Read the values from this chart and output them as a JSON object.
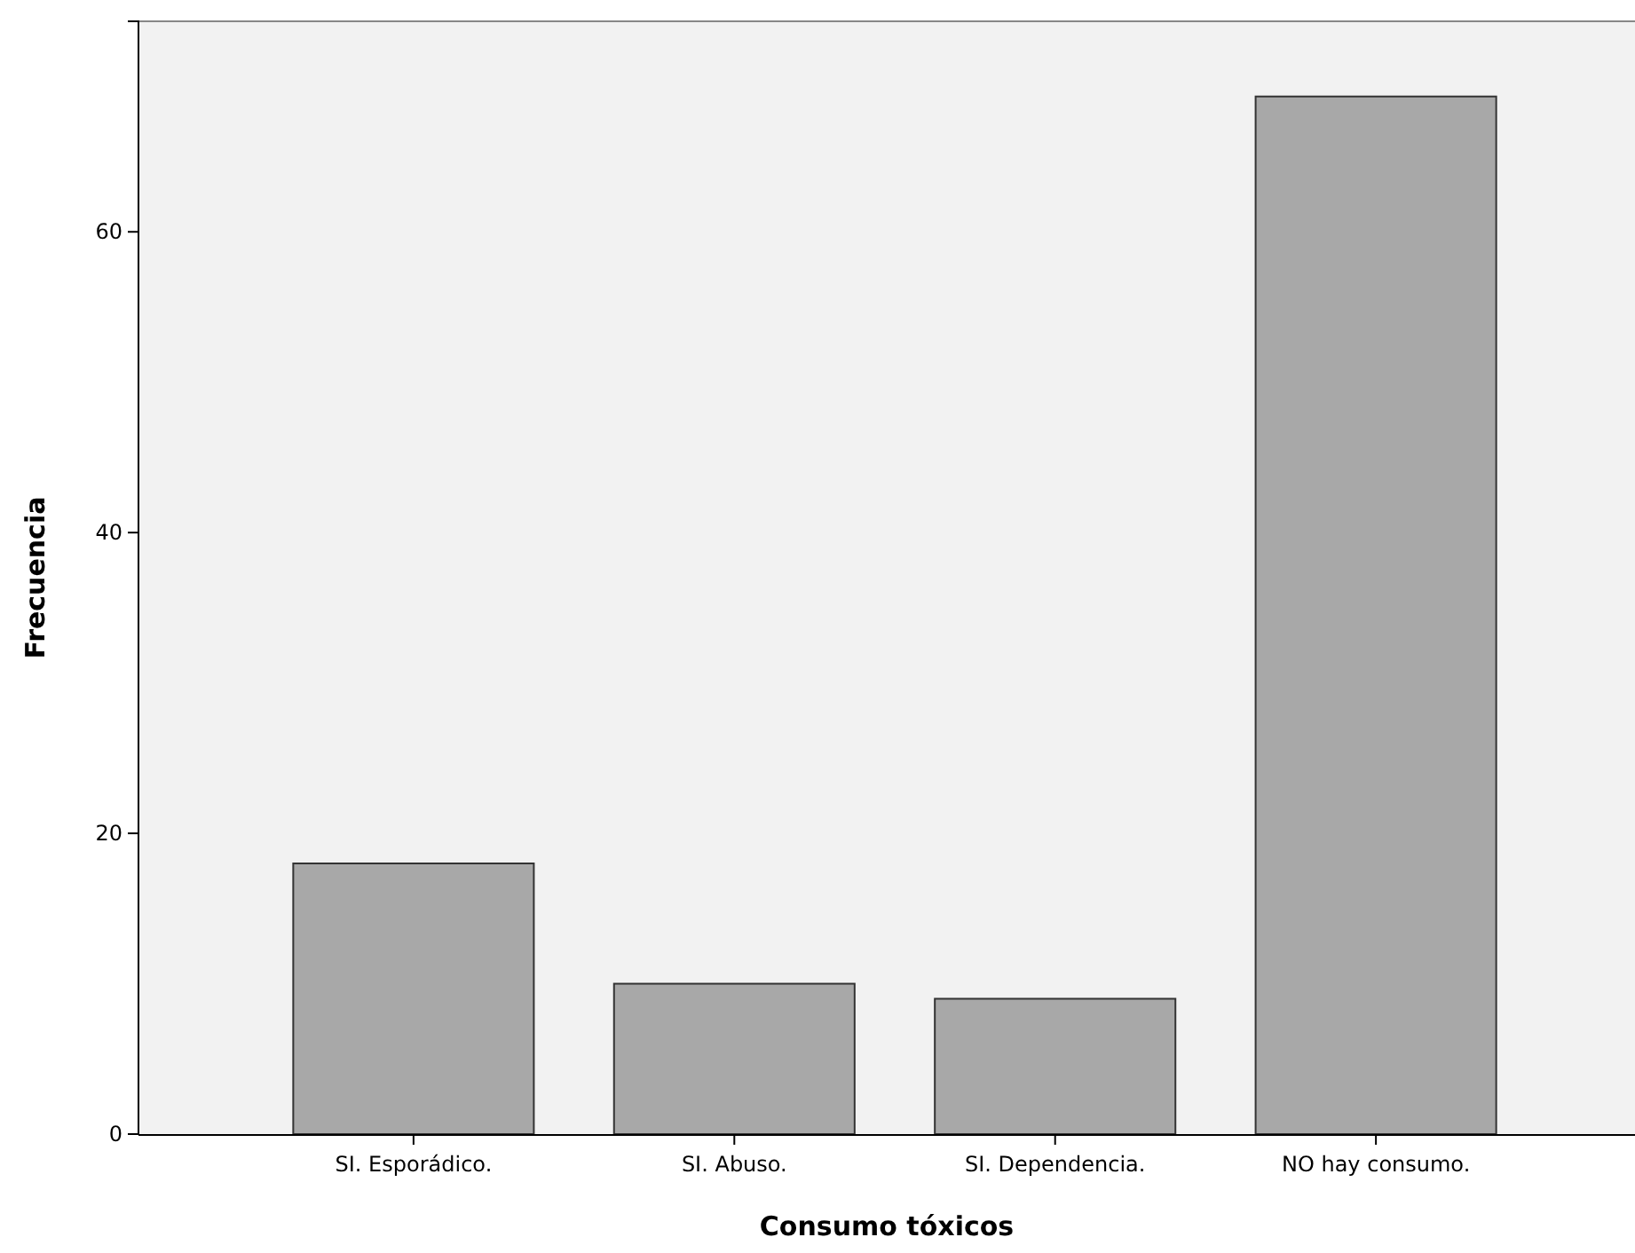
{
  "chart_data": {
    "type": "bar",
    "xlabel": "Consumo tóxicos",
    "ylabel": "Frecuencia",
    "categories": [
      "SI. Esporádico.",
      "SI. Abuso.",
      "SI. Dependencia.",
      "NO hay consumo."
    ],
    "values": [
      18,
      10,
      9,
      69
    ],
    "color": "#a8a8a8",
    "ylim": [
      0,
      74
    ],
    "yticks": [
      0,
      20,
      40,
      60
    ],
    "grid": false
  }
}
